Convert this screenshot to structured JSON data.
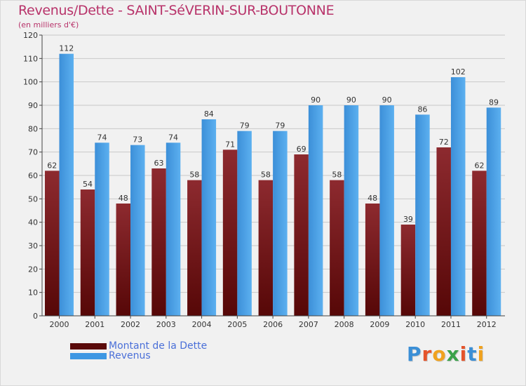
{
  "header": {
    "title": "Revenus/Dette - SAINT-SéVERIN-SUR-BOUTONNE",
    "subtitle": "(en milliers d'€)"
  },
  "chart_data": {
    "type": "bar",
    "categories": [
      "2000",
      "2001",
      "2002",
      "2003",
      "2004",
      "2005",
      "2006",
      "2007",
      "2008",
      "2009",
      "2010",
      "2011",
      "2012"
    ],
    "series": [
      {
        "name": "Montant de la Dette",
        "values": [
          62,
          54,
          48,
          63,
          58,
          71,
          58,
          69,
          58,
          48,
          39,
          72,
          62
        ],
        "color": "#7a1d22"
      },
      {
        "name": "Revenus",
        "values": [
          112,
          74,
          73,
          74,
          84,
          79,
          79,
          90,
          90,
          90,
          86,
          102,
          89
        ],
        "color": "#4da3e8"
      }
    ],
    "ylim": [
      0,
      120
    ],
    "yticks": [
      0,
      10,
      20,
      30,
      40,
      50,
      60,
      70,
      80,
      90,
      100,
      110,
      120
    ],
    "grid": true,
    "legend": "bottom-left"
  },
  "legend": {
    "items": [
      {
        "label": "Montant de la Dette",
        "color": "#5a0a0a"
      },
      {
        "label": "Revenus",
        "color": "#3d97e3"
      }
    ]
  },
  "logo": {
    "letters": [
      {
        "ch": "P",
        "color": "#3b8fd6"
      },
      {
        "ch": "r",
        "color": "#e5532a"
      },
      {
        "ch": "o",
        "color": "#f0a21e"
      },
      {
        "ch": "x",
        "color": "#3aa24a"
      },
      {
        "ch": "i",
        "color": "#e5532a"
      },
      {
        "ch": "t",
        "color": "#3b8fd6"
      },
      {
        "ch": "i",
        "color": "#f0a21e"
      }
    ]
  }
}
